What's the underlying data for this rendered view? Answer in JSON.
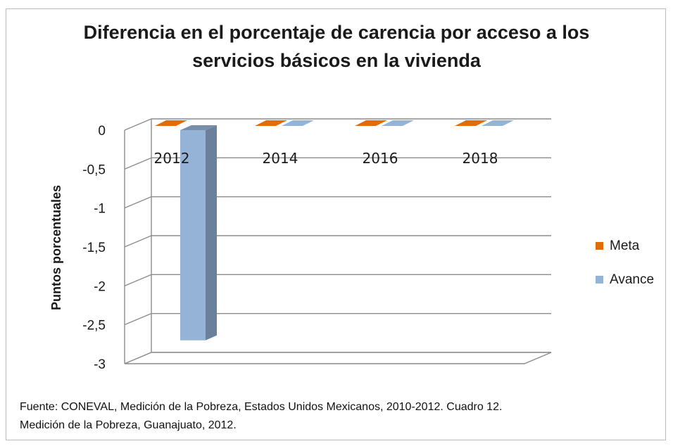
{
  "chart_data": {
    "type": "bar",
    "title_lines": [
      "Diferencia en el porcentaje de carencia por acceso a los",
      "servicios básicos en la vivienda"
    ],
    "categories": [
      "2012",
      "2014",
      "2016",
      "2018"
    ],
    "series": [
      {
        "name": "Meta",
        "values": [
          0,
          0,
          0,
          0
        ],
        "color": "#e36c0a"
      },
      {
        "name": "Avance",
        "values": [
          -2.7,
          0,
          0,
          0
        ],
        "color": "#95b3d7"
      }
    ],
    "ylabel": "Puntos porcentuales",
    "ylim": [
      -3,
      0
    ],
    "yticks": [
      "0",
      "-0,5",
      "-1",
      "-1,5",
      "-2",
      "-2,5",
      "-3"
    ],
    "legend_position": "right",
    "grid": true,
    "three_d": true
  },
  "source_lines": [
    "Fuente: CONEVAL, Medición de la Pobreza, Estados Unidos Mexicanos, 2010-2012. Cuadro 12.",
    "Medición de la Pobreza, Guanajuato, 2012."
  ]
}
